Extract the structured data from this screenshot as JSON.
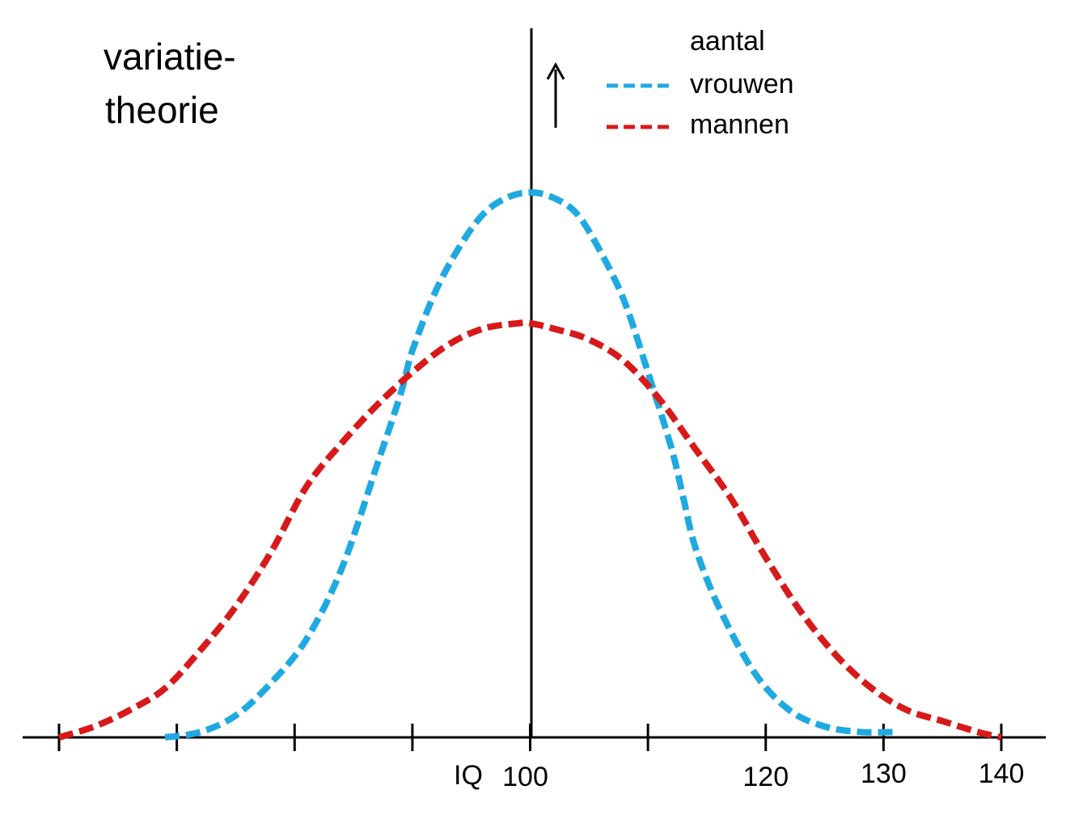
{
  "chart_data": {
    "type": "line",
    "title_lines": [
      "variatie-",
      "theorie"
    ],
    "ylabel": "aantal",
    "xlabel": "IQ",
    "ticks": [
      {
        "x": 60,
        "label": ""
      },
      {
        "x": 70,
        "label": ""
      },
      {
        "x": 80,
        "label": ""
      },
      {
        "x": 90,
        "label": ""
      },
      {
        "x": 100,
        "label": "100"
      },
      {
        "x": 110,
        "label": ""
      },
      {
        "x": 120,
        "label": "120"
      },
      {
        "x": 130,
        "label": "130"
      },
      {
        "x": 140,
        "label": "140"
      }
    ],
    "xlim": [
      60,
      140
    ],
    "ylim": [
      0,
      1
    ],
    "legend_position": "top-right",
    "series": [
      {
        "name": "vrouwen",
        "color": "#1fa9e1",
        "x": [
          69,
          72,
          75,
          78,
          81,
          84,
          87,
          89,
          90,
          92,
          94,
          96,
          98,
          100,
          102,
          104,
          106,
          108,
          110,
          112,
          113,
          114,
          116,
          119,
          122,
          125,
          128,
          131
        ],
        "y": [
          0.0,
          0.01,
          0.04,
          0.1,
          0.18,
          0.31,
          0.5,
          0.63,
          0.71,
          0.82,
          0.9,
          0.96,
          0.99,
          1.0,
          0.99,
          0.96,
          0.89,
          0.8,
          0.67,
          0.53,
          0.44,
          0.35,
          0.24,
          0.12,
          0.05,
          0.02,
          0.01,
          0.01
        ]
      },
      {
        "name": "mannen",
        "color": "#d81919",
        "x": [
          60,
          63,
          66,
          69,
          72,
          75,
          78,
          81,
          84,
          87,
          90,
          93,
          96,
          99,
          100,
          102,
          105,
          108,
          111,
          114,
          117,
          120,
          123,
          126,
          129,
          132,
          135,
          138,
          140
        ],
        "y": [
          0.0,
          0.02,
          0.05,
          0.09,
          0.16,
          0.24,
          0.34,
          0.46,
          0.54,
          0.61,
          0.67,
          0.72,
          0.75,
          0.76,
          0.76,
          0.75,
          0.73,
          0.69,
          0.62,
          0.53,
          0.44,
          0.33,
          0.23,
          0.15,
          0.09,
          0.05,
          0.03,
          0.01,
          0.0
        ]
      }
    ]
  }
}
